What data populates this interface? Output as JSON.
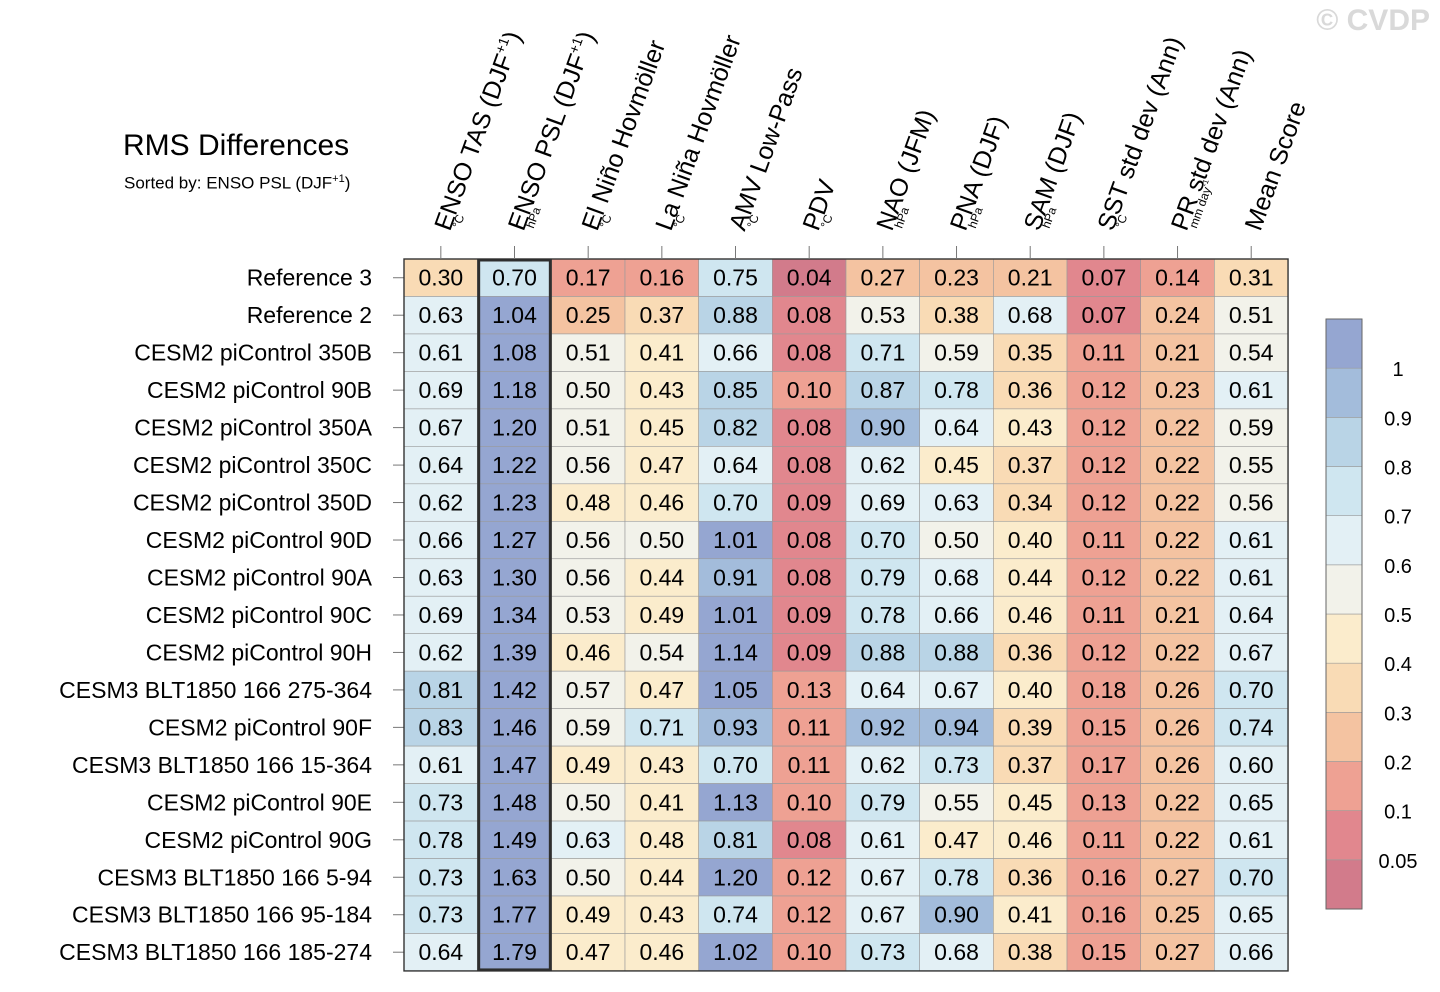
{
  "watermark": "© CVDP",
  "title": "RMS Differences",
  "subtitle_prefix": "Sorted by: ENSO PSL (DJF",
  "subtitle_sup": "+1",
  "subtitle_suffix": ")",
  "chart_data": {
    "type": "heatmap",
    "title": "RMS Differences",
    "sorted_by": "ENSO PSL (DJF+1)",
    "highlighted_column": "ENSO PSL (DJF+1)",
    "columns": [
      {
        "label": "ENSO TAS (DJF",
        "sup": "+1",
        "after": ")",
        "unit": "°C",
        "unit_sup": ""
      },
      {
        "label": "ENSO PSL (DJF",
        "sup": "+1",
        "after": ")",
        "unit": "hPa",
        "unit_sup": ""
      },
      {
        "label": "El Niño Hovmöller",
        "sup": "",
        "after": "",
        "unit": "°C",
        "unit_sup": ""
      },
      {
        "label": "La Niña Hovmöller",
        "sup": "",
        "after": "",
        "unit": "°C",
        "unit_sup": ""
      },
      {
        "label": "AMV Low-Pass",
        "sup": "",
        "after": "",
        "unit": "°C",
        "unit_sup": ""
      },
      {
        "label": "PDV",
        "sup": "",
        "after": "",
        "unit": "°C",
        "unit_sup": ""
      },
      {
        "label": "NAO (JFM)",
        "sup": "",
        "after": "",
        "unit": "hPa",
        "unit_sup": ""
      },
      {
        "label": "PNA (DJF)",
        "sup": "",
        "after": "",
        "unit": "hPa",
        "unit_sup": ""
      },
      {
        "label": "SAM (DJF)",
        "sup": "",
        "after": "",
        "unit": "hPa",
        "unit_sup": ""
      },
      {
        "label": "SST std dev (Ann)",
        "sup": "",
        "after": "",
        "unit": "°C",
        "unit_sup": ""
      },
      {
        "label": "PR std dev (Ann)",
        "sup": "",
        "after": "",
        "unit": "mm day",
        "unit_sup": "-1"
      },
      {
        "label": "Mean Score",
        "sup": "",
        "after": "",
        "unit": "",
        "unit_sup": ""
      }
    ],
    "rows": [
      {
        "name": "Reference 3",
        "values": [
          0.3,
          0.7,
          0.17,
          0.16,
          0.75,
          0.04,
          0.27,
          0.23,
          0.21,
          0.07,
          0.14,
          0.31
        ]
      },
      {
        "name": "Reference 2",
        "values": [
          0.63,
          1.04,
          0.25,
          0.37,
          0.88,
          0.08,
          0.53,
          0.38,
          0.68,
          0.07,
          0.24,
          0.51
        ]
      },
      {
        "name": "CESM2 piControl 350B",
        "values": [
          0.61,
          1.08,
          0.51,
          0.41,
          0.66,
          0.08,
          0.71,
          0.59,
          0.35,
          0.11,
          0.21,
          0.54
        ]
      },
      {
        "name": "CESM2 piControl 90B",
        "values": [
          0.69,
          1.18,
          0.5,
          0.43,
          0.85,
          0.1,
          0.87,
          0.78,
          0.36,
          0.12,
          0.23,
          0.61
        ]
      },
      {
        "name": "CESM2 piControl 350A",
        "values": [
          0.67,
          1.2,
          0.51,
          0.45,
          0.82,
          0.08,
          0.9,
          0.64,
          0.43,
          0.12,
          0.22,
          0.59
        ]
      },
      {
        "name": "CESM2 piControl 350C",
        "values": [
          0.64,
          1.22,
          0.56,
          0.47,
          0.64,
          0.08,
          0.62,
          0.45,
          0.37,
          0.12,
          0.22,
          0.55
        ]
      },
      {
        "name": "CESM2 piControl 350D",
        "values": [
          0.62,
          1.23,
          0.48,
          0.46,
          0.7,
          0.09,
          0.69,
          0.63,
          0.34,
          0.12,
          0.22,
          0.56
        ]
      },
      {
        "name": "CESM2 piControl 90D",
        "values": [
          0.66,
          1.27,
          0.56,
          0.5,
          1.01,
          0.08,
          0.7,
          0.5,
          0.4,
          0.11,
          0.22,
          0.61
        ]
      },
      {
        "name": "CESM2 piControl 90A",
        "values": [
          0.63,
          1.3,
          0.56,
          0.44,
          0.91,
          0.08,
          0.79,
          0.68,
          0.44,
          0.12,
          0.22,
          0.61
        ]
      },
      {
        "name": "CESM2 piControl 90C",
        "values": [
          0.69,
          1.34,
          0.53,
          0.49,
          1.01,
          0.09,
          0.78,
          0.66,
          0.46,
          0.11,
          0.21,
          0.64
        ]
      },
      {
        "name": "CESM2 piControl 90H",
        "values": [
          0.62,
          1.39,
          0.46,
          0.54,
          1.14,
          0.09,
          0.88,
          0.88,
          0.36,
          0.12,
          0.22,
          0.67
        ]
      },
      {
        "name": "CESM3 BLT1850 166 275-364",
        "values": [
          0.81,
          1.42,
          0.57,
          0.47,
          1.05,
          0.13,
          0.64,
          0.67,
          0.4,
          0.18,
          0.26,
          0.7
        ]
      },
      {
        "name": "CESM2 piControl 90F",
        "values": [
          0.83,
          1.46,
          0.59,
          0.71,
          0.93,
          0.11,
          0.92,
          0.94,
          0.39,
          0.15,
          0.26,
          0.74
        ]
      },
      {
        "name": "CESM3 BLT1850 166 15-364",
        "values": [
          0.61,
          1.47,
          0.49,
          0.43,
          0.7,
          0.11,
          0.62,
          0.73,
          0.37,
          0.17,
          0.26,
          0.6
        ]
      },
      {
        "name": "CESM2 piControl 90E",
        "values": [
          0.73,
          1.48,
          0.5,
          0.41,
          1.13,
          0.1,
          0.79,
          0.55,
          0.45,
          0.13,
          0.22,
          0.65
        ]
      },
      {
        "name": "CESM2 piControl 90G",
        "values": [
          0.78,
          1.49,
          0.63,
          0.48,
          0.81,
          0.08,
          0.61,
          0.47,
          0.46,
          0.11,
          0.22,
          0.61
        ]
      },
      {
        "name": "CESM3 BLT1850 166 5-94",
        "values": [
          0.73,
          1.63,
          0.5,
          0.44,
          1.2,
          0.12,
          0.67,
          0.78,
          0.36,
          0.16,
          0.27,
          0.7
        ]
      },
      {
        "name": "CESM3 BLT1850 166 95-184",
        "values": [
          0.73,
          1.77,
          0.49,
          0.43,
          0.74,
          0.12,
          0.67,
          0.9,
          0.41,
          0.16,
          0.25,
          0.65
        ]
      },
      {
        "name": "CESM3 BLT1850 166 185-274",
        "values": [
          0.64,
          1.79,
          0.47,
          0.46,
          1.02,
          0.1,
          0.73,
          0.68,
          0.38,
          0.15,
          0.27,
          0.66
        ]
      }
    ],
    "colorbar": {
      "thresholds": [
        0.05,
        0.1,
        0.2,
        0.3,
        0.4,
        0.5,
        0.6,
        0.7,
        0.8,
        0.9,
        1
      ],
      "tick_labels": [
        "0.05",
        "0.1",
        "0.2",
        "0.3",
        "0.4",
        "0.5",
        "0.6",
        "0.7",
        "0.8",
        "0.9",
        "1"
      ],
      "colors": [
        "#d27b8b",
        "#e1878e",
        "#eea193",
        "#f4c3a1",
        "#f9dbb5",
        "#fbeccc",
        "#f2f2ea",
        "#e3f0f5",
        "#cfe6f0",
        "#b9d4e6",
        "#a3bcdb",
        "#95a6d1"
      ]
    }
  }
}
